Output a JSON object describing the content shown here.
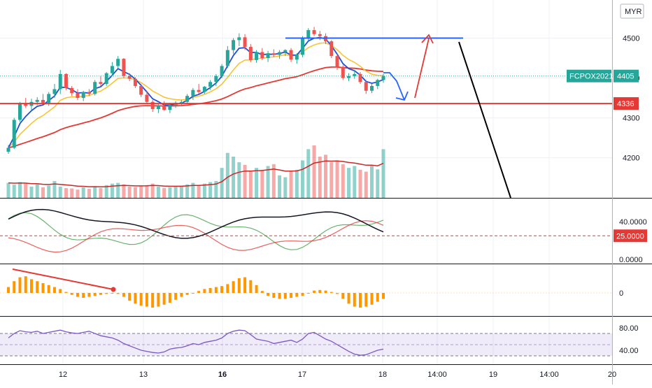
{
  "chart_data": {
    "type": "candlestick",
    "symbol": "FCPOX2021",
    "currency": "MYR",
    "last_price": "4405",
    "horizontal_level": "4336",
    "x_ticks": [
      "12",
      "13",
      "16",
      "17",
      "18",
      "14:00",
      "19",
      "14:00",
      "20"
    ],
    "price_panel": {
      "y_ticks": [
        "4500",
        "4400",
        "4300",
        "4200"
      ],
      "ylim": [
        4110,
        4585
      ],
      "ohlc": [
        [
          4215,
          4232,
          4210,
          4225
        ],
        [
          4225,
          4300,
          4222,
          4295
        ],
        [
          4295,
          4340,
          4290,
          4335
        ],
        [
          4335,
          4350,
          4325,
          4330
        ],
        [
          4330,
          4348,
          4320,
          4340
        ],
        [
          4340,
          4352,
          4332,
          4345
        ],
        [
          4345,
          4360,
          4335,
          4338
        ],
        [
          4338,
          4365,
          4330,
          4360
        ],
        [
          4360,
          4385,
          4350,
          4372
        ],
        [
          4372,
          4420,
          4360,
          4410
        ],
        [
          4410,
          4412,
          4370,
          4375
        ],
        [
          4375,
          4380,
          4355,
          4362
        ],
        [
          4362,
          4372,
          4345,
          4350
        ],
        [
          4350,
          4368,
          4342,
          4365
        ],
        [
          4365,
          4372,
          4355,
          4360
        ],
        [
          4360,
          4395,
          4356,
          4390
        ],
        [
          4390,
          4405,
          4380,
          4385
        ],
        [
          4385,
          4415,
          4380,
          4412
        ],
        [
          4412,
          4440,
          4405,
          4430
        ],
        [
          4430,
          4455,
          4425,
          4448
        ],
        [
          4448,
          4450,
          4400,
          4405
        ],
        [
          4405,
          4412,
          4392,
          4398
        ],
        [
          4398,
          4402,
          4375,
          4380
        ],
        [
          4380,
          4385,
          4352,
          4358
        ],
        [
          4358,
          4368,
          4335,
          4340
        ],
        [
          4340,
          4345,
          4315,
          4322
        ],
        [
          4322,
          4336,
          4312,
          4330
        ],
        [
          4330,
          4342,
          4318,
          4320
        ],
        [
          4320,
          4338,
          4312,
          4332
        ],
        [
          4332,
          4342,
          4325,
          4338
        ],
        [
          4338,
          4345,
          4330,
          4340
        ],
        [
          4340,
          4360,
          4335,
          4355
        ],
        [
          4355,
          4375,
          4345,
          4370
        ],
        [
          4370,
          4385,
          4360,
          4365
        ],
        [
          4365,
          4380,
          4360,
          4378
        ],
        [
          4378,
          4395,
          4370,
          4390
        ],
        [
          4390,
          4410,
          4380,
          4405
        ],
        [
          4405,
          4435,
          4400,
          4430
        ],
        [
          4430,
          4480,
          4425,
          4470
        ],
        [
          4470,
          4500,
          4460,
          4495
        ],
        [
          4495,
          4512,
          4480,
          4502
        ],
        [
          4502,
          4510,
          4470,
          4478
        ],
        [
          4478,
          4485,
          4440,
          4445
        ],
        [
          4445,
          4470,
          4438,
          4465
        ],
        [
          4465,
          4475,
          4445,
          4450
        ],
        [
          4450,
          4468,
          4440,
          4462
        ],
        [
          4462,
          4472,
          4452,
          4458
        ],
        [
          4458,
          4470,
          4448,
          4465
        ],
        [
          4465,
          4472,
          4455,
          4470
        ],
        [
          4470,
          4475,
          4440,
          4446
        ],
        [
          4446,
          4462,
          4436,
          4458
        ],
        [
          4458,
          4505,
          4452,
          4500
        ],
        [
          4500,
          4525,
          4495,
          4520
        ],
        [
          4520,
          4528,
          4505,
          4510
        ],
        [
          4510,
          4518,
          4495,
          4505
        ],
        [
          4505,
          4512,
          4485,
          4492
        ],
        [
          4492,
          4495,
          4450,
          4455
        ],
        [
          4455,
          4460,
          4420,
          4428
        ],
        [
          4428,
          4432,
          4395,
          4400
        ],
        [
          4400,
          4412,
          4392,
          4405
        ],
        [
          4405,
          4420,
          4398,
          4410
        ],
        [
          4410,
          4415,
          4385,
          4390
        ],
        [
          4390,
          4395,
          4360,
          4368
        ],
        [
          4368,
          4385,
          4362,
          4380
        ],
        [
          4380,
          4398,
          4372,
          4395
        ],
        [
          4395,
          4410,
          4388,
          4405
        ]
      ],
      "volume": [
        40,
        35,
        42,
        38,
        30,
        36,
        28,
        33,
        45,
        30,
        26,
        25,
        22,
        28,
        24,
        30,
        26,
        34,
        38,
        40,
        36,
        30,
        28,
        32,
        34,
        38,
        30,
        26,
        28,
        30,
        32,
        36,
        40,
        34,
        38,
        42,
        45,
        80,
        120,
        110,
        95,
        88,
        70,
        80,
        75,
        85,
        90,
        60,
        55,
        70,
        75,
        100,
        130,
        140,
        110,
        115,
        95,
        100,
        90,
        80,
        85,
        75,
        70,
        88,
        76,
        130
      ],
      "volume_max": 140
    },
    "panel2": {
      "y_ticks": [
        "40.0000",
        "25.0000",
        "0.0000"
      ],
      "marked_level": "25.0000",
      "ylim": [
        0,
        60
      ]
    },
    "panel3": {
      "y_ticks": [
        "0"
      ],
      "ylim": [
        -1,
        1
      ],
      "hist": [
        0.3,
        0.6,
        0.8,
        0.85,
        0.7,
        0.6,
        0.5,
        0.4,
        0.3,
        0.2,
        0.05,
        -0.1,
        -0.2,
        -0.25,
        -0.2,
        -0.15,
        -0.1,
        -0.05,
        0.0,
        -0.05,
        -0.2,
        -0.4,
        -0.55,
        -0.65,
        -0.7,
        -0.75,
        -0.7,
        -0.6,
        -0.5,
        -0.35,
        -0.2,
        -0.1,
        0.0,
        0.1,
        0.2,
        0.25,
        0.3,
        0.35,
        0.45,
        0.6,
        0.75,
        0.8,
        0.65,
        0.4,
        0.1,
        -0.15,
        -0.25,
        -0.3,
        -0.3,
        -0.25,
        -0.2,
        -0.15,
        0.0,
        0.12,
        0.15,
        0.12,
        0.05,
        -0.05,
        -0.3,
        -0.55,
        -0.7,
        -0.75,
        -0.7,
        -0.6,
        -0.45,
        -0.3
      ]
    },
    "panel4": {
      "y_ticks": [
        "80.00",
        "40.00"
      ],
      "ylim": [
        20,
        95
      ],
      "rsi": [
        62,
        70,
        75,
        73,
        72,
        74,
        70,
        72,
        74,
        76,
        73,
        71,
        70,
        72,
        74,
        70,
        66,
        64,
        62,
        58,
        52,
        48,
        44,
        40,
        38,
        36,
        35,
        37,
        42,
        44,
        45,
        48,
        52,
        50,
        54,
        56,
        58,
        62,
        70,
        74,
        76,
        75,
        68,
        60,
        58,
        56,
        52,
        54,
        56,
        58,
        54,
        60,
        70,
        72,
        66,
        60,
        56,
        50,
        44,
        38,
        33,
        31,
        32,
        36,
        40,
        42
      ]
    }
  }
}
